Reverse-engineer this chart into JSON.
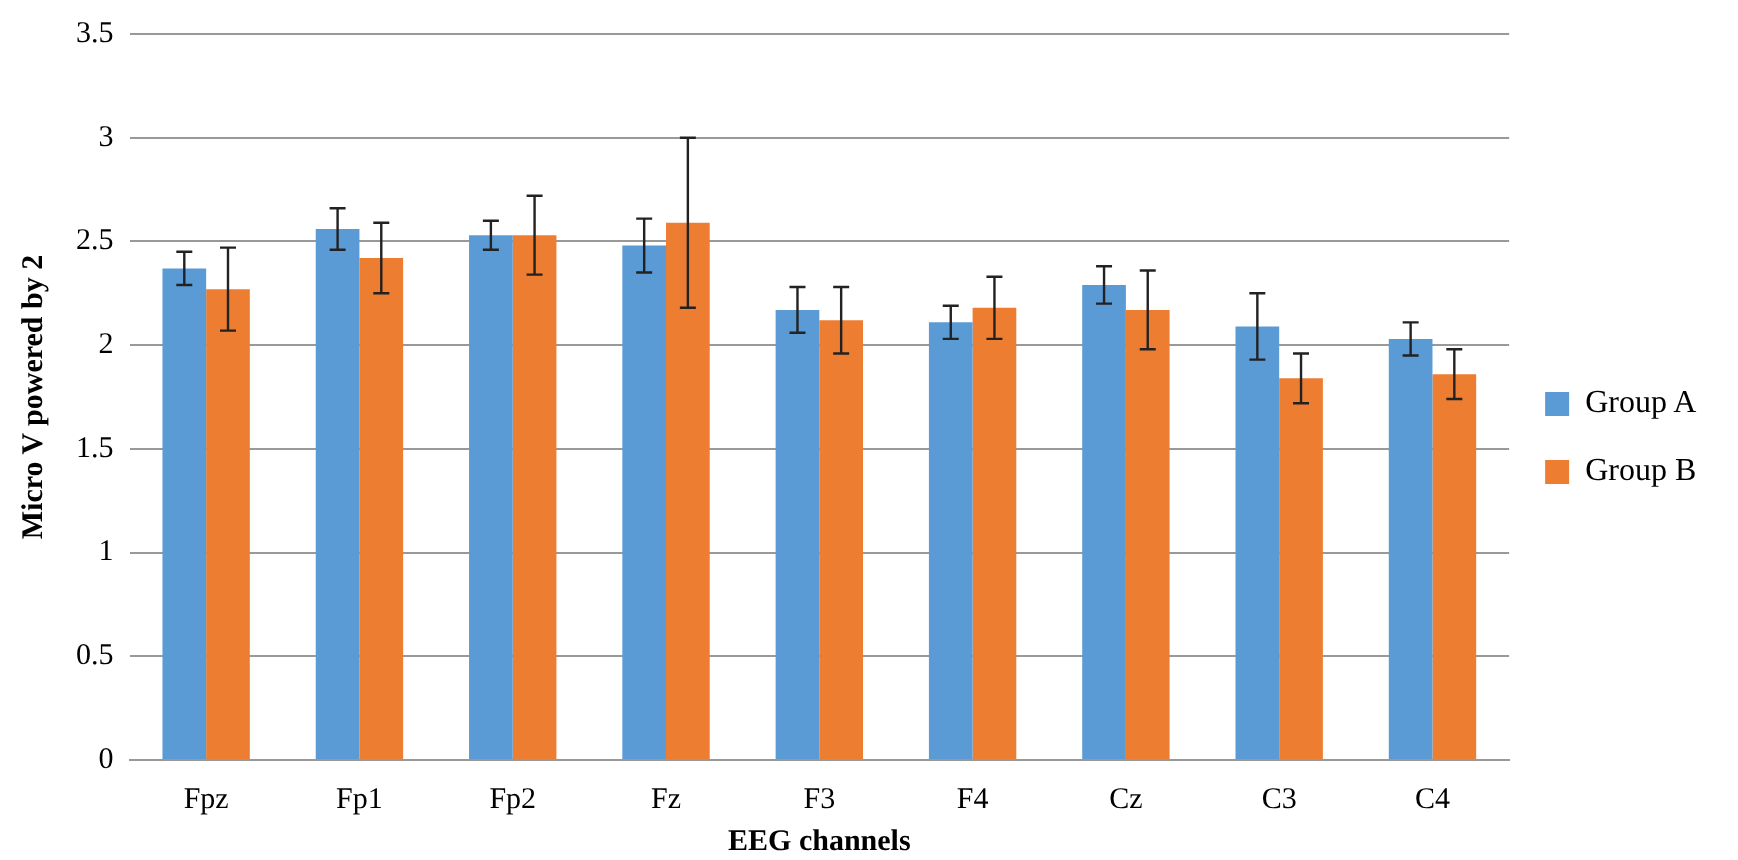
{
  "chart_data": {
    "type": "bar",
    "xlabel": "EEG channels",
    "ylabel": "Micro V powered by 2",
    "categories": [
      "Fpz",
      "Fp1",
      "Fp2",
      "Fz",
      "F3",
      "F4",
      "Cz",
      "C3",
      "C4"
    ],
    "series": [
      {
        "name": "Group A",
        "color": "#5b9bd5",
        "values": [
          2.37,
          2.56,
          2.53,
          2.48,
          2.17,
          2.11,
          2.29,
          2.09,
          2.03
        ],
        "errors": [
          0.08,
          0.1,
          0.07,
          0.13,
          0.11,
          0.08,
          0.09,
          0.16,
          0.08
        ]
      },
      {
        "name": "Group B",
        "color": "#ed7d31",
        "values": [
          2.27,
          2.42,
          2.53,
          2.59,
          2.12,
          2.18,
          2.17,
          1.84,
          1.86
        ],
        "errors": [
          0.2,
          0.17,
          0.19,
          0.41,
          0.16,
          0.15,
          0.19,
          0.12,
          0.12
        ]
      }
    ],
    "ylim": [
      0,
      3.5
    ],
    "yticks": [
      0,
      0.5,
      1,
      1.5,
      2,
      2.5,
      3,
      3.5
    ],
    "grid": "y",
    "legend": "right"
  }
}
